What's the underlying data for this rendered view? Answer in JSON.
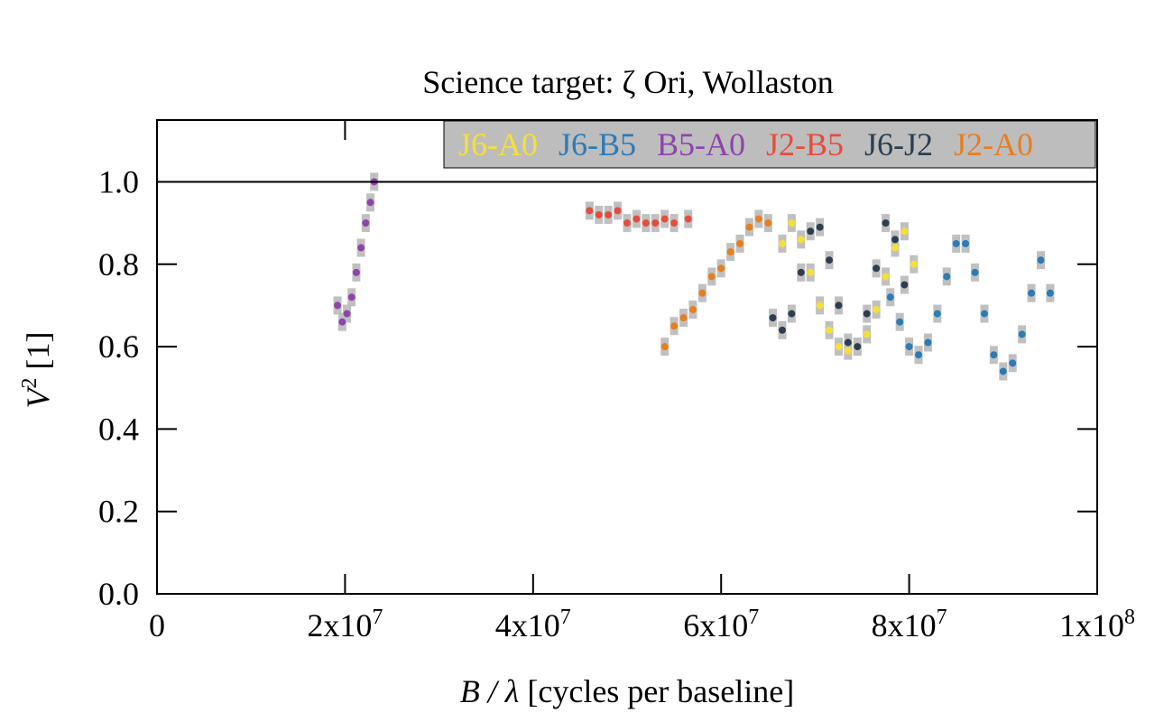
{
  "chart_data": {
    "type": "scatter",
    "title": "Science target: ζ Ori, Wollaston",
    "xlabel": {
      "sym": "B / λ",
      "rest": " [cycles per baseline]"
    },
    "ylabel": {
      "sym": "V",
      "sup": "2",
      "rest": " [1]"
    },
    "xlim": [
      0,
      100000000
    ],
    "ylim": [
      0,
      1.15
    ],
    "x_ticks": [
      {
        "value": 0,
        "base": "0",
        "exp": ""
      },
      {
        "value": 20000000,
        "base": "2x10",
        "exp": "7"
      },
      {
        "value": 40000000,
        "base": "4x10",
        "exp": "7"
      },
      {
        "value": 60000000,
        "base": "6x10",
        "exp": "7"
      },
      {
        "value": 80000000,
        "base": "8x10",
        "exp": "7"
      },
      {
        "value": 100000000,
        "base": "1x10",
        "exp": "8"
      }
    ],
    "y_ticks": [
      {
        "value": 0.0,
        "label": "0.0"
      },
      {
        "value": 0.2,
        "label": "0.2"
      },
      {
        "value": 0.4,
        "label": "0.4"
      },
      {
        "value": 0.6,
        "label": "0.6"
      },
      {
        "value": 0.8,
        "label": "0.8"
      },
      {
        "value": 1.0,
        "label": "1.0"
      }
    ],
    "reference_line": 1.0,
    "grid": false,
    "legend_placement": "top-right",
    "legend_background": "#bdbdbd",
    "errorbar_color": "#c0c0c0",
    "series": [
      {
        "name": "J6-A0",
        "color": "#f5e03a",
        "points": [
          [
            66500000.0,
            0.85
          ],
          [
            67500000.0,
            0.9
          ],
          [
            68500000.0,
            0.86
          ],
          [
            69500000.0,
            0.78
          ],
          [
            70500000.0,
            0.7
          ],
          [
            71500000.0,
            0.64
          ],
          [
            72500000.0,
            0.6
          ],
          [
            73500000.0,
            0.59
          ],
          [
            74500000.0,
            0.6
          ],
          [
            75500000.0,
            0.63
          ],
          [
            76500000.0,
            0.69
          ],
          [
            77500000.0,
            0.77
          ],
          [
            78500000.0,
            0.84
          ],
          [
            79500000.0,
            0.88
          ],
          [
            80500000.0,
            0.8
          ]
        ]
      },
      {
        "name": "J6-B5",
        "color": "#2c7bb6",
        "points": [
          [
            78000000.0,
            0.72
          ],
          [
            79000000.0,
            0.66
          ],
          [
            80000000.0,
            0.6
          ],
          [
            81000000.0,
            0.58
          ],
          [
            82000000.0,
            0.61
          ],
          [
            83000000.0,
            0.68
          ],
          [
            84000000.0,
            0.77
          ],
          [
            85000000.0,
            0.85
          ],
          [
            86000000.0,
            0.85
          ],
          [
            87000000.0,
            0.78
          ],
          [
            88000000.0,
            0.68
          ],
          [
            89000000.0,
            0.58
          ],
          [
            90000000.0,
            0.54
          ],
          [
            91000000.0,
            0.56
          ],
          [
            92000000.0,
            0.63
          ],
          [
            93000000.0,
            0.73
          ],
          [
            94000000.0,
            0.81
          ],
          [
            95000000.0,
            0.73
          ]
        ]
      },
      {
        "name": "B5-A0",
        "color": "#8e44ad",
        "points": [
          [
            19200000.0,
            0.7
          ],
          [
            19700000.0,
            0.66
          ],
          [
            20200000.0,
            0.68
          ],
          [
            20700000.0,
            0.72
          ],
          [
            21200000.0,
            0.78
          ],
          [
            21700000.0,
            0.84
          ],
          [
            22200000.0,
            0.9
          ],
          [
            22700000.0,
            0.95
          ],
          [
            23100000.0,
            1.0
          ]
        ]
      },
      {
        "name": "J2-B5",
        "color": "#e74c3c",
        "points": [
          [
            46000000.0,
            0.93
          ],
          [
            47000000.0,
            0.92
          ],
          [
            48000000.0,
            0.92
          ],
          [
            49000000.0,
            0.93
          ],
          [
            50000000.0,
            0.9
          ],
          [
            51000000.0,
            0.91
          ],
          [
            52000000.0,
            0.9
          ],
          [
            53000000.0,
            0.9
          ],
          [
            54000000.0,
            0.91
          ],
          [
            55000000.0,
            0.9
          ],
          [
            56500000.0,
            0.91
          ]
        ]
      },
      {
        "name": "J6-J2",
        "color": "#2c3e50",
        "points": [
          [
            65500000.0,
            0.67
          ],
          [
            66500000.0,
            0.64
          ],
          [
            67500000.0,
            0.68
          ],
          [
            68500000.0,
            0.78
          ],
          [
            69500000.0,
            0.88
          ],
          [
            70500000.0,
            0.89
          ],
          [
            71500000.0,
            0.81
          ],
          [
            72500000.0,
            0.7
          ],
          [
            73500000.0,
            0.61
          ],
          [
            74500000.0,
            0.6
          ],
          [
            75500000.0,
            0.68
          ],
          [
            76500000.0,
            0.79
          ],
          [
            77500000.0,
            0.9
          ],
          [
            78500000.0,
            0.86
          ],
          [
            79500000.0,
            0.75
          ]
        ]
      },
      {
        "name": "J2-A0",
        "color": "#e67e22",
        "points": [
          [
            54000000.0,
            0.6
          ],
          [
            55000000.0,
            0.65
          ],
          [
            56000000.0,
            0.67
          ],
          [
            57000000.0,
            0.69
          ],
          [
            58000000.0,
            0.73
          ],
          [
            59000000.0,
            0.77
          ],
          [
            60000000.0,
            0.79
          ],
          [
            61000000.0,
            0.83
          ],
          [
            62000000.0,
            0.85
          ],
          [
            63000000.0,
            0.89
          ],
          [
            64000000.0,
            0.91
          ],
          [
            65000000.0,
            0.9
          ]
        ]
      }
    ]
  }
}
